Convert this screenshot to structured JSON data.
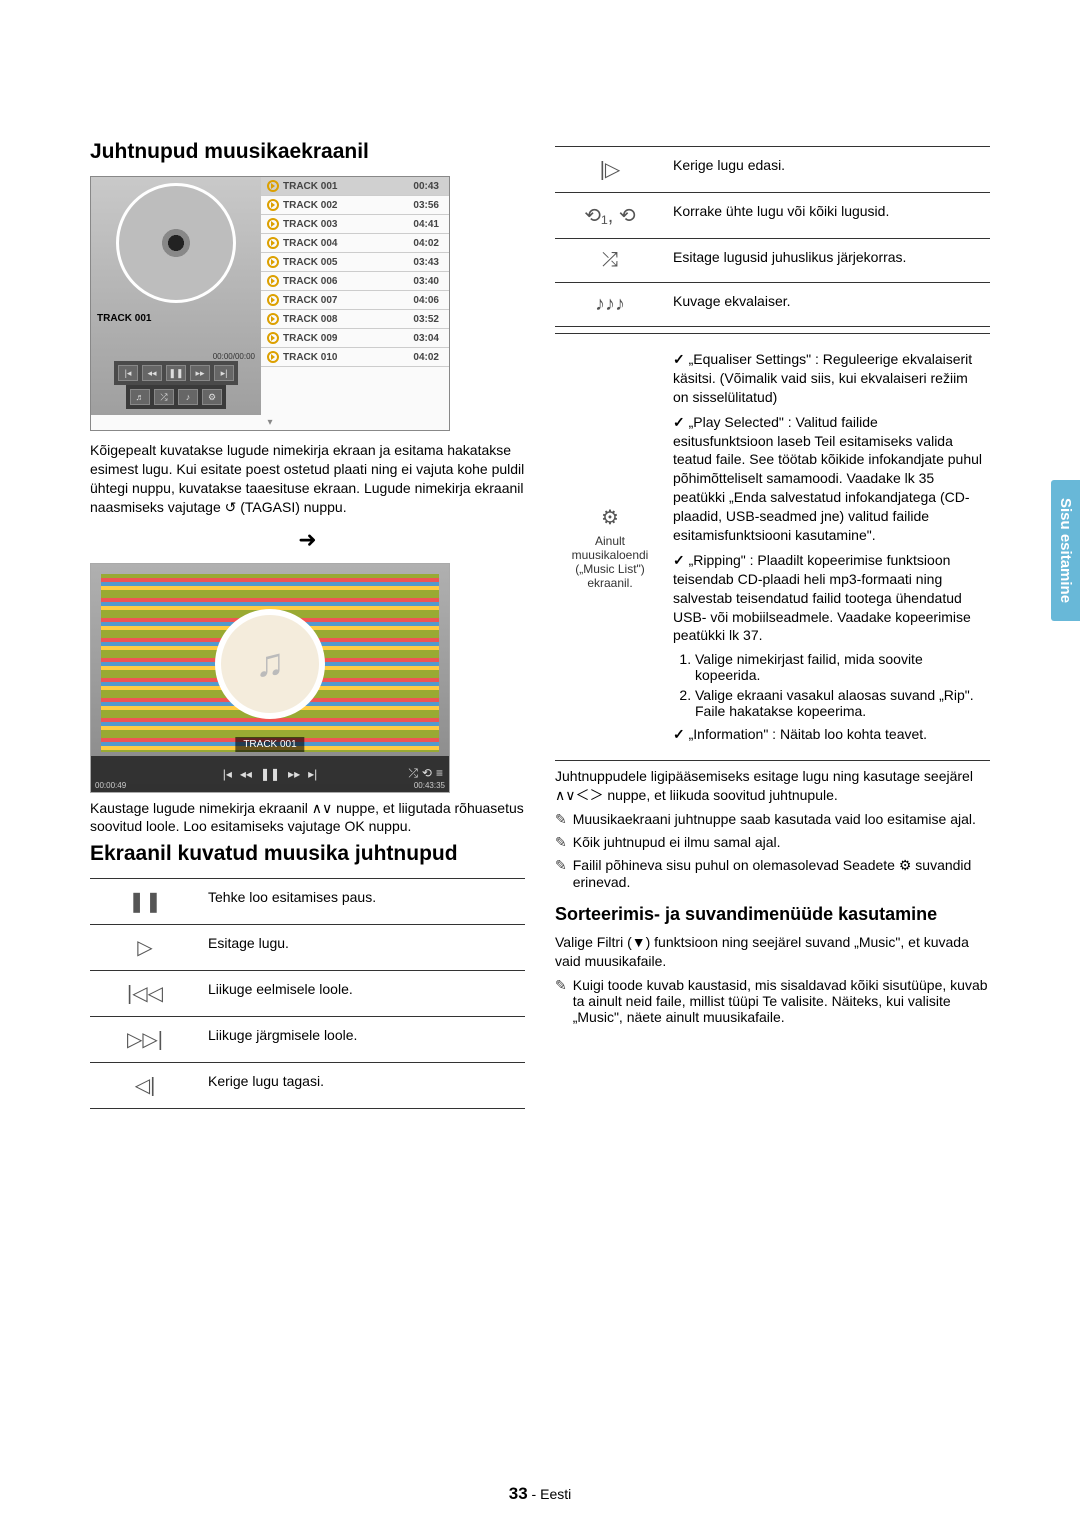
{
  "side_tab": "Sisu esitamine",
  "footer_page": "33",
  "footer_lang": " - Eesti",
  "left": {
    "h1": "Juhtnupud muusikaekraanil",
    "player": {
      "now": "TRACK 001",
      "time": "00:00/00:00",
      "tracks": [
        {
          "n": "TRACK 001",
          "t": "00:43"
        },
        {
          "n": "TRACK 002",
          "t": "03:56"
        },
        {
          "n": "TRACK 003",
          "t": "04:41"
        },
        {
          "n": "TRACK 004",
          "t": "04:02"
        },
        {
          "n": "TRACK 005",
          "t": "03:43"
        },
        {
          "n": "TRACK 006",
          "t": "03:40"
        },
        {
          "n": "TRACK 007",
          "t": "04:06"
        },
        {
          "n": "TRACK 008",
          "t": "03:52"
        },
        {
          "n": "TRACK 009",
          "t": "03:04"
        },
        {
          "n": "TRACK 010",
          "t": "04:02"
        }
      ]
    },
    "p1": "Kõigepealt kuvatakse lugude nimekirja ekraan ja esitama hakatakse esimest lugu. Kui esitate poest ostetud plaati ning ei vajuta kohe puldil ühtegi nuppu, kuvatakse taaesituse ekraan. Lugude nimekirja ekraanil naasmiseks vajutage ↺ (TAGASI) nuppu.",
    "np_title": "TRACK 001",
    "np_time_l": "00:00:49",
    "np_time_r": "00:43:35",
    "p2": "Kaustage lugude nimekirja ekraanil ∧∨ nuppe, et liigutada rõhuasetus soovitud loole. Loo esitamiseks vajutage OK nuppu.",
    "h2": "Ekraanil kuvatud muusika juhtnupud",
    "tbl1": [
      {
        "icon": "❚❚",
        "txt": "Tehke loo esitamises paus."
      },
      {
        "icon": "▷",
        "txt": "Esitage lugu."
      },
      {
        "icon": "|◁◁",
        "txt": "Liikuge eelmisele loole."
      },
      {
        "icon": "▷▷|",
        "txt": "Liikuge järgmisele loole."
      },
      {
        "icon": "◁|",
        "txt": "Kerige lugu tagasi."
      }
    ]
  },
  "right": {
    "tbl2": [
      {
        "icon": "|▷",
        "txt": "Kerige lugu edasi."
      },
      {
        "icon": "⟲₁, ⟲",
        "txt": "Korrake ühte lugu või kõiki lugusid."
      },
      {
        "icon": "⤮",
        "txt": "Esitage lugusid juhuslikus järjekorras."
      },
      {
        "icon": "♪♪♪",
        "txt": "Kuvage ekvalaiser."
      }
    ],
    "settings_icon_sub": "Ainult muusikaloendi („Music List\") ekraanil.",
    "eq": "„Equaliser Settings\" : Reguleerige ekvalaiserit käsitsi. (Võimalik vaid siis, kui ekvalaiseri režiim on sisselülitatud)",
    "play_sel": "„Play Selected\" : Valitud failide esitusfunktsioon laseb Teil esitamiseks valida teatud faile. See töötab kõikide infokandjate puhul põhimõtteliselt samamoodi. Vaadake lk 35 peatükki „Enda salvestatud infokandjatega (CD-plaadid, USB-seadmed jne) valitud failide esitamisfunktsiooni kasutamine\".",
    "ripping": "„Ripping\" : Plaadilt kopeerimise funktsioon teisendab CD-plaadi heli mp3-formaati ning salvestab teisendatud failid tootega ühendatud USB- või mobiilseadmele. Vaadake kopeerimise peatükki lk 37.",
    "rip1": "Valige nimekirjast failid, mida soovite kopeerida.",
    "rip2": "Valige ekraani vasakul alaosas suvand „Rip\". Faile hakatakse kopeerima.",
    "info": "„Information\" : Näitab loo kohta teavet.",
    "p3": "Juhtnuppudele ligipääsemiseks esitage lugu ning kasutage seejärel ∧∨＜＞ nuppe, et liikuda soovitud juhtnupule.",
    "n1": "Muusikaekraani juhtnuppe saab kasutada vaid loo esitamise ajal.",
    "n2": "Kõik juhtnupud ei ilmu samal ajal.",
    "n3": "Failil põhineva sisu puhul on olemasolevad Seadete ⚙ suvandid erinevad.",
    "h3": "Sorteerimis- ja suvandimenüüde kasutamine",
    "p4": "Valige Filtri (▼) funktsioon ning seejärel suvand „Music\", et kuvada vaid muusikafaile.",
    "n4": "Kuigi toode kuvab kaustasid, mis sisaldavad kõiki sisutüüpe, kuvab ta ainult neid faile, millist tüüpi Te valisite. Näiteks, kui valisite „Music\", näete ainult muusikafaile."
  }
}
